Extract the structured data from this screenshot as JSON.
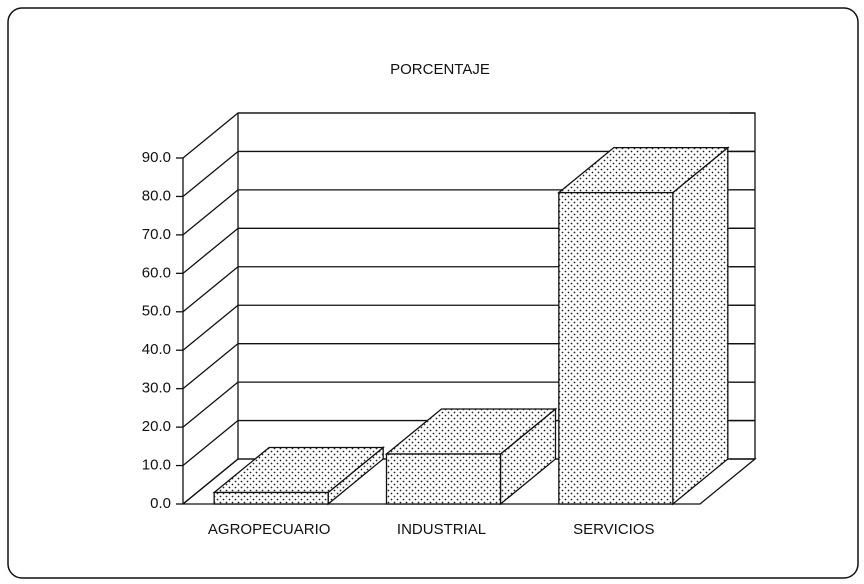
{
  "chart_data": {
    "type": "bar3d",
    "title": "PORCENTAJE",
    "categories": [
      "AGROPECUARIO",
      "INDUSTRIAL",
      "SERVICIOS"
    ],
    "values": [
      3,
      13,
      81
    ],
    "color": "#ffffff",
    "ylim": [
      0,
      90
    ],
    "yticks": [
      {
        "value": 0,
        "label": "0.0"
      },
      {
        "value": 10,
        "label": "10.0"
      },
      {
        "value": 20,
        "label": "20.0"
      },
      {
        "value": 30,
        "label": "30.0"
      },
      {
        "value": 40,
        "label": "40.0"
      },
      {
        "value": 50,
        "label": "50.0"
      },
      {
        "value": 60,
        "label": "60.0"
      },
      {
        "value": 70,
        "label": "70.0"
      },
      {
        "value": 80,
        "label": "80.0"
      },
      {
        "value": 90,
        "label": "90.0"
      }
    ],
    "grid": true
  }
}
